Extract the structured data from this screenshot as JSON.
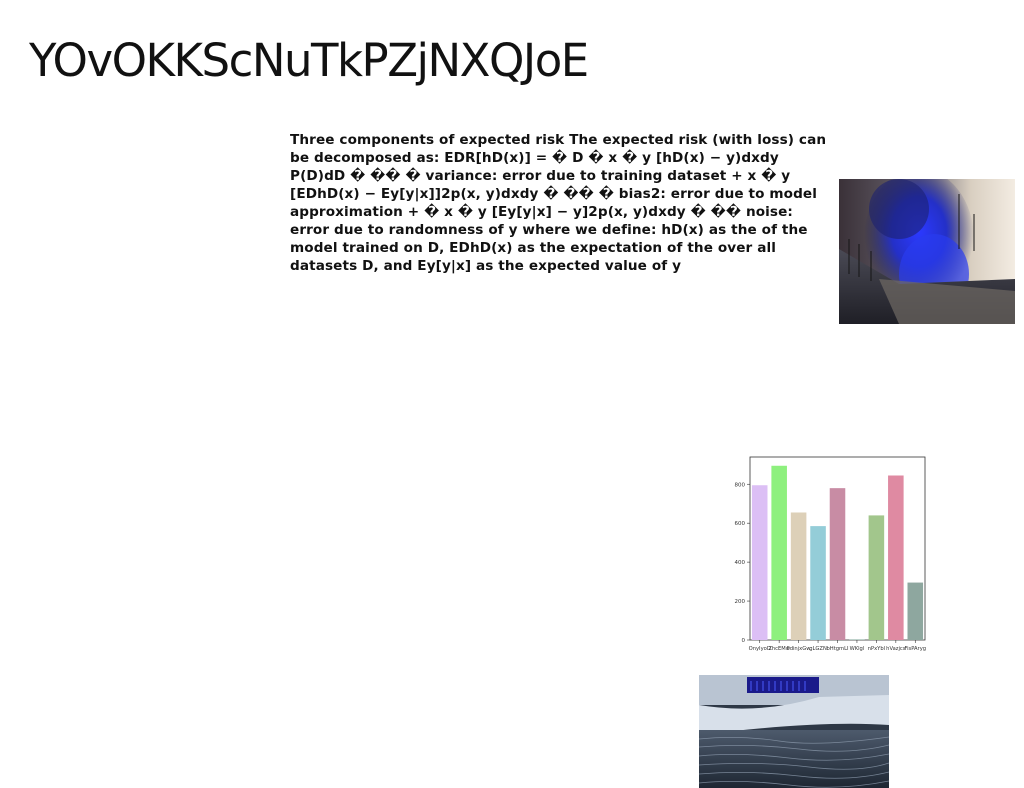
{
  "page": {
    "title": "YOvOKKScNuTkPZjNXQJoE",
    "body_text": "Three components of expected risk The expected risk (with loss) can be decomposed as: EDR[hD(x)] = � D � x � y [hD(x) − y)dxdy P(D)dD � �� � variance: error due to training dataset + x � y [EDhD(x) − Ey[y|x]]2p(x, y)dxdy � �� � bias2: error due to model approximation + � x � y [Ey[y|x] − y]2p(x, y)dxdy � �� noise: error due to randomness of y where we define: hD(x) as the of the model trained on D, EDhD(x) as the expectation of the over all datasets D, and Ey[y|x] as the expected value of y"
  },
  "images": {
    "smoke_photo": "blue-smoke-volcano-photo",
    "coast_photo": "snowy-coast-building-photo"
  },
  "chart_data": {
    "type": "bar",
    "categories": [
      "OnyIyoD",
      "ZhcEMw",
      "FdinjxGw",
      "gLGZN",
      "bHtgmLI",
      "WKlgl",
      "nPxYbl",
      "hVazjcs",
      "FisPAryg"
    ],
    "values": [
      795,
      895,
      655,
      585,
      780,
      3,
      640,
      845,
      295
    ],
    "colors": [
      "#dcbff5",
      "#8ef07e",
      "#ddd0b8",
      "#94cdd8",
      "#c88ca4",
      "#8fb3a6",
      "#a2c68c",
      "#df8aa2",
      "#8ea79f"
    ],
    "ylim": [
      0,
      940
    ],
    "yticks": [
      0,
      200,
      400,
      600,
      800
    ],
    "title": "",
    "xlabel": "",
    "ylabel": ""
  }
}
